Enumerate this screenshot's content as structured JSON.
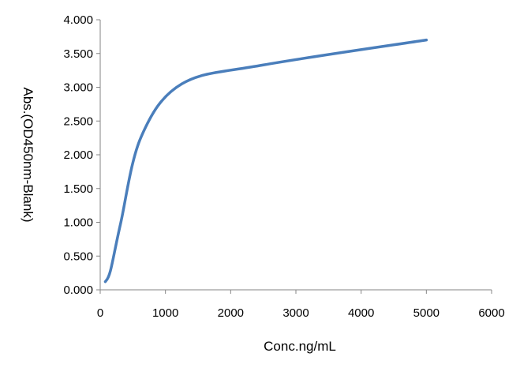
{
  "chart_data": {
    "type": "line",
    "title": "",
    "xlabel": "Conc.ng/mL",
    "ylabel": "Abs.(OD450nm-Blank)",
    "xlim": [
      0,
      6000
    ],
    "ylim": [
      0,
      4
    ],
    "x_ticks": [
      "0",
      "1000",
      "2000",
      "3000",
      "4000",
      "5000",
      "6000"
    ],
    "y_ticks": [
      "0.000",
      "0.500",
      "1.000",
      "1.500",
      "2.000",
      "2.500",
      "3.000",
      "3.500",
      "4.000"
    ],
    "grid": false,
    "legend": "none",
    "series": [
      {
        "color": "#4a7ebb",
        "smooth": true,
        "x": [
          78,
          156,
          312,
          625,
          1250,
          2500,
          5000
        ],
        "y": [
          0.12,
          0.28,
          0.98,
          2.26,
          3.05,
          3.33,
          3.7
        ]
      }
    ]
  }
}
